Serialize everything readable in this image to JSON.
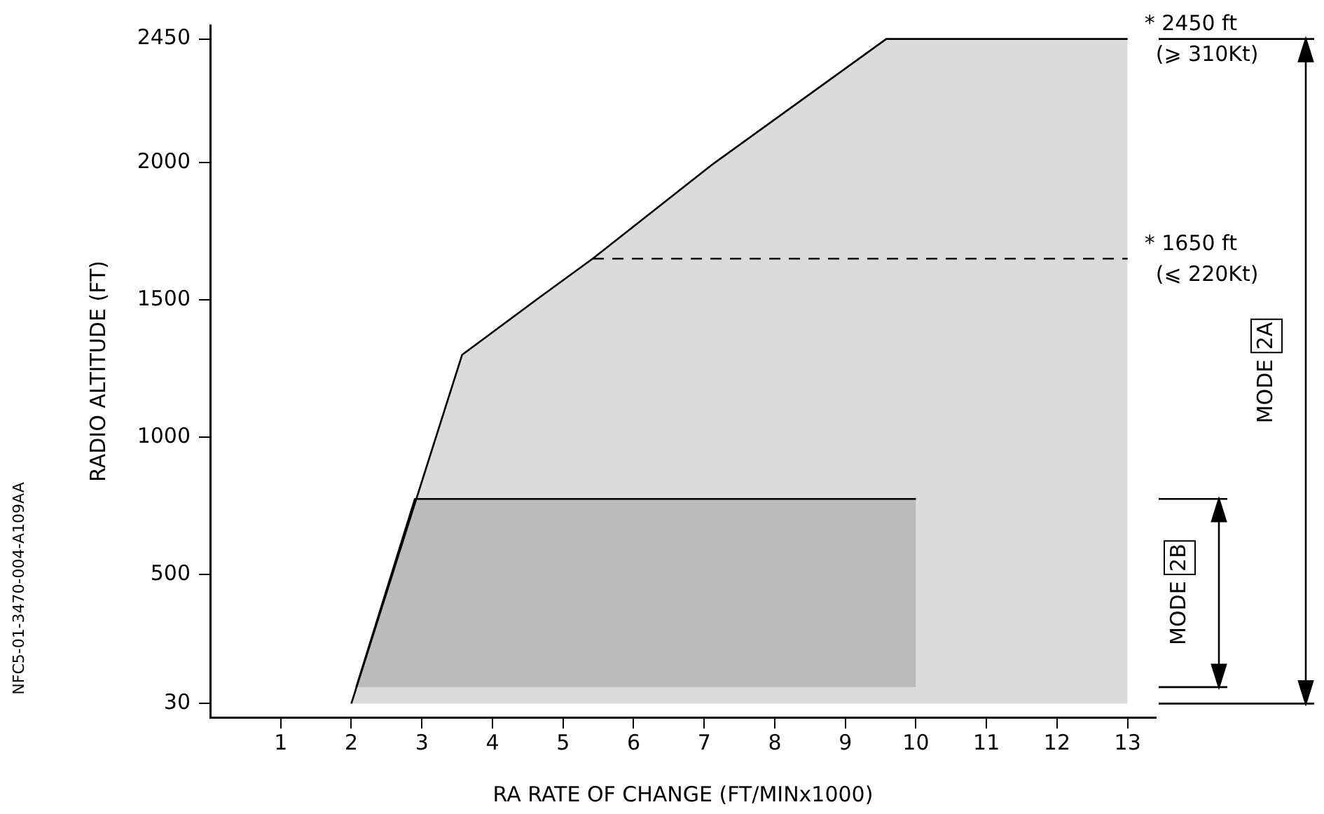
{
  "chart_data": {
    "type": "area",
    "xlabel": "RA RATE OF CHANGE (FT/MINx1000)",
    "ylabel": "RADIO ALTITUDE (FT)",
    "xlim": [
      0,
      13.4
    ],
    "xticks": [
      1,
      2,
      3,
      4,
      5,
      6,
      7,
      8,
      9,
      10,
      11,
      12,
      13
    ],
    "ylim": [
      -20,
      2500
    ],
    "yticks": [
      30,
      500,
      1000,
      1500,
      2000,
      2450
    ],
    "grid": false,
    "legend": false,
    "marker": "none",
    "series": [
      {
        "color": "#000000",
        "x": [
          2,
          3.57,
          4.62,
          5.42,
          7.1,
          9.58,
          13
        ],
        "values": [
          30,
          1300,
          1500,
          1650,
          1990,
          2450,
          2450
        ]
      },
      {
        "color": "#000000",
        "x": [
          2.07,
          2.9,
          10
        ],
        "values": [
          90,
          775,
          775
        ]
      },
      {
        "type": "line",
        "line_style": "dashed",
        "color": "#000000",
        "x": [
          5.42,
          13
        ],
        "values": [
          1650,
          1650
        ]
      }
    ],
    "annotations": [
      "MODE 2A",
      "MODE 2B",
      {
        "text": "* 2450 ft\n(⩾ 310Kt)",
        "x": 13,
        "y": 2450
      },
      {
        "text": "* 1650 ft\n(⩽ 220Kt)",
        "x": 13,
        "y": 1650
      },
      "NFC5-01-3470-004-A109AA"
    ]
  }
}
